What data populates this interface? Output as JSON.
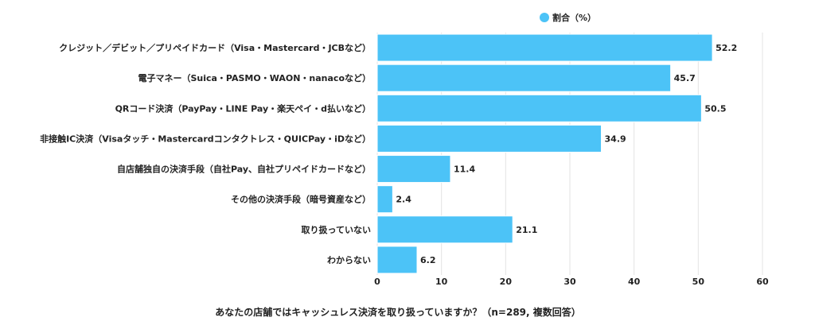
{
  "chart_data": {
    "type": "bar",
    "orientation": "horizontal",
    "categories": [
      "クレジット／デビット／プリペイドカード（Visa・Mastercard・JCBなど）",
      "電子マネー（Suica・PASMO・WAON・nanacoなど）",
      "QRコード決済（PayPay・LINE Pay・楽天ペイ・d払いなど）",
      "非接触IC決済（Visaタッチ・Mastercardコンタクトレス・QUICPay・iDなど）",
      "自店舗独自の決済手段（自社Pay、自社プリペイドカードなど）",
      "その他の決済手段（暗号資産など）",
      "取り扱っていない",
      "わからない"
    ],
    "series": [
      {
        "name": "割合（%）",
        "values": [
          52.2,
          45.7,
          50.5,
          34.9,
          11.4,
          2.4,
          21.1,
          6.2
        ]
      }
    ],
    "value_labels": [
      "52.2",
      "45.7",
      "50.5",
      "34.9",
      "11.4",
      "2.4",
      "21.1",
      "6.2"
    ],
    "xlim": [
      0,
      60
    ],
    "ticks": [
      0,
      10,
      20,
      30,
      40,
      50,
      60
    ],
    "tick_labels": [
      "0",
      "10",
      "20",
      "30",
      "40",
      "50",
      "60"
    ],
    "xlabel": "あなたの店舗ではキャッシュレス決済を取り扱っていますか？（n=289, 複数回答）",
    "legend": {
      "label": "割合（%）",
      "position": "top-center"
    },
    "grid": true,
    "colors": {
      "bar": "#4cc3f7",
      "bar_stroke": "#ffffff"
    }
  }
}
